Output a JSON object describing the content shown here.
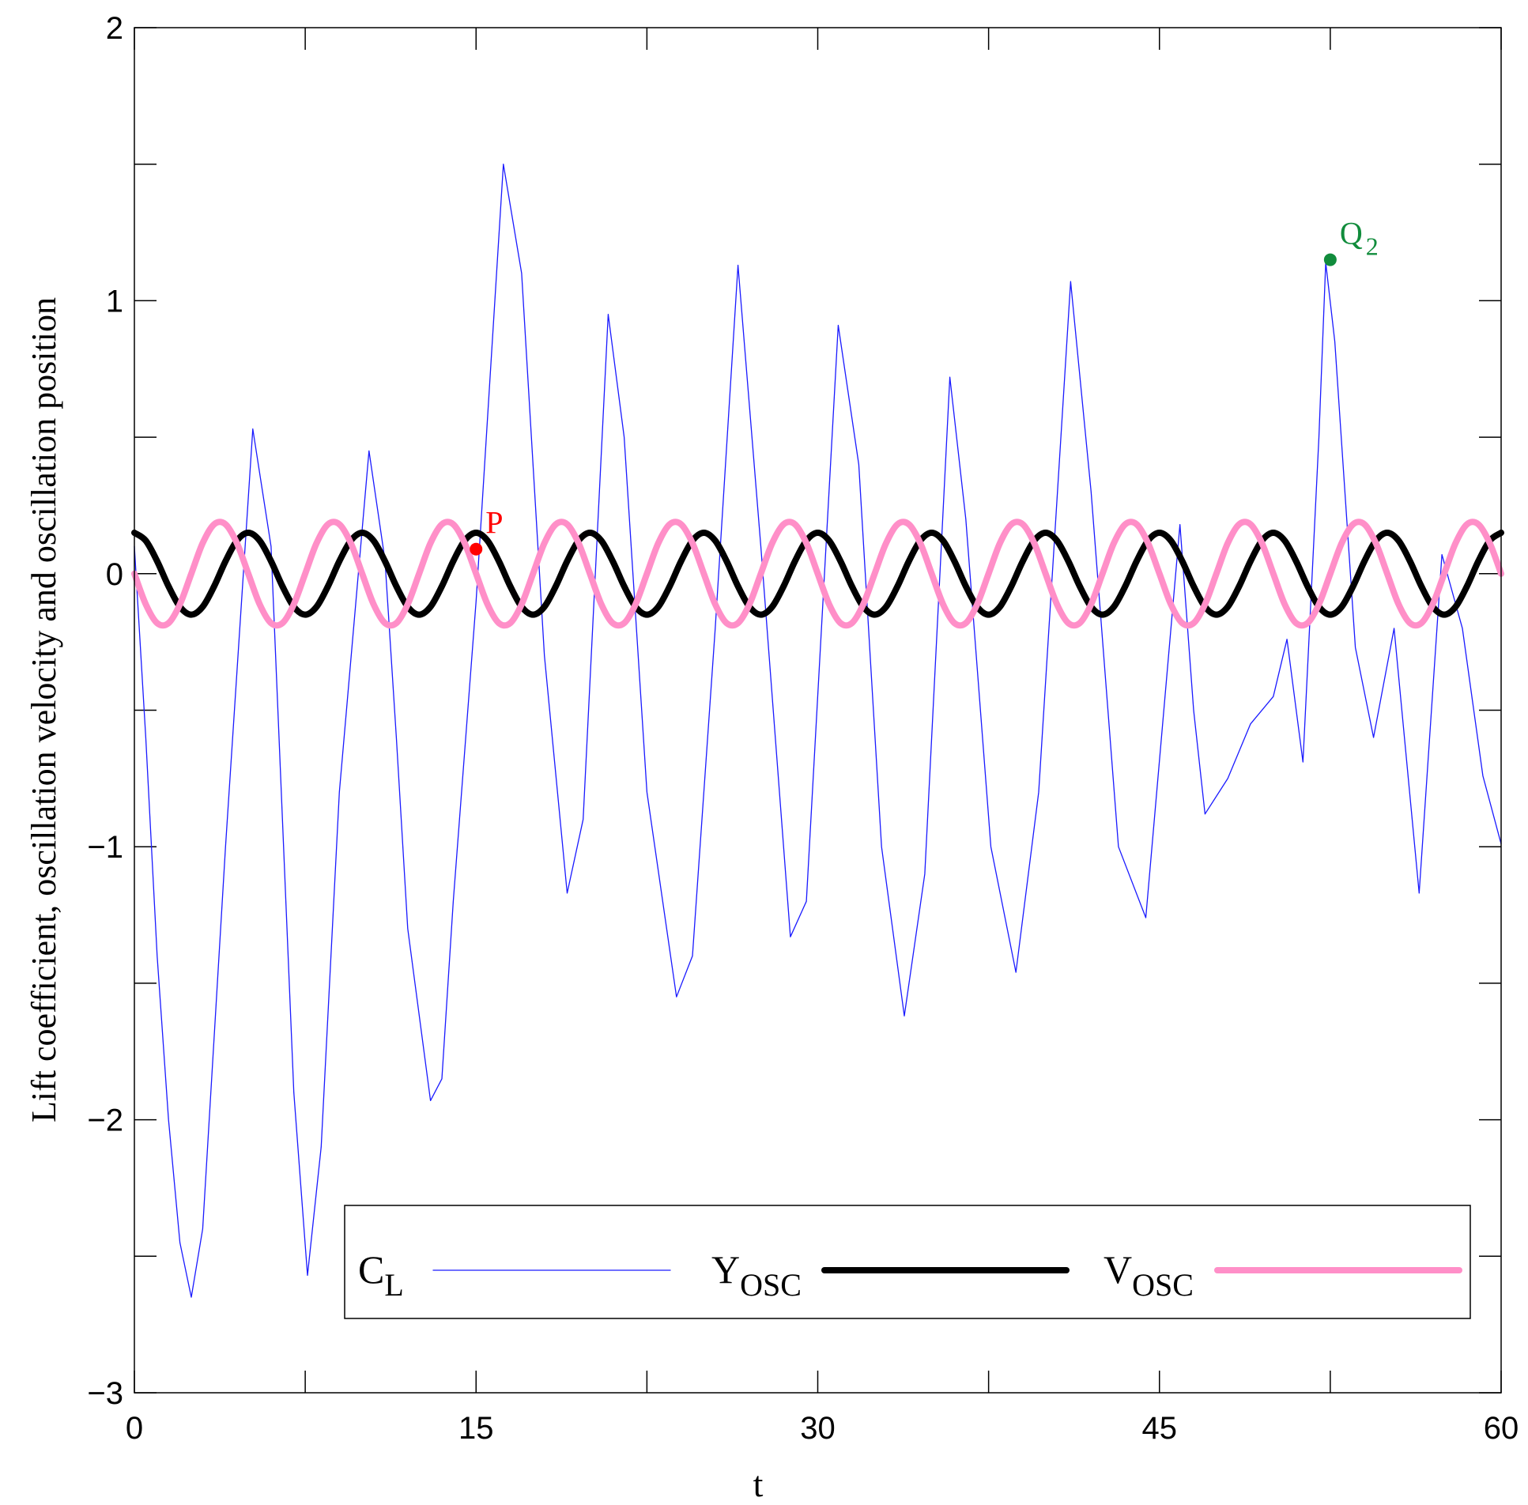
{
  "chart_data": {
    "type": "line",
    "xlabel": "t",
    "ylabel": "Lift coefficient, oscillation velocity and oscillation position",
    "xlim": [
      0,
      60
    ],
    "ylim": [
      -3,
      2
    ],
    "xticks": [
      0,
      15,
      30,
      45,
      60
    ],
    "xminor": [
      7.5,
      22.5,
      37.5,
      52.5
    ],
    "yticks": [
      {
        "value": -3,
        "label": "−3"
      },
      {
        "value": -2,
        "label": "−2"
      },
      {
        "value": -1,
        "label": "−1"
      },
      0,
      1,
      2
    ],
    "yminor": [
      -2.5,
      -1.5,
      -0.5,
      0.5,
      1.5
    ],
    "series": [
      {
        "name": "C",
        "sub": "L",
        "color": "#1a1aff",
        "width": 1.3,
        "smooth": false,
        "x": [
          0,
          0.5,
          1,
          1.5,
          2,
          2.5,
          3,
          4,
          5.2,
          6,
          6.5,
          7,
          7.6,
          8.2,
          9,
          10.3,
          11,
          11.5,
          12,
          13,
          13.5,
          14,
          15,
          16.2,
          17,
          18,
          19,
          19.7,
          20.8,
          21.5,
          22.5,
          23.8,
          24.5,
          25.5,
          26.5,
          27.5,
          28.8,
          29.5,
          30.9,
          31.8,
          32.8,
          33.8,
          34.7,
          35.8,
          36.5,
          37.6,
          38.7,
          39.7,
          41.1,
          42,
          43.2,
          44.4,
          45.9,
          46.5,
          47,
          48,
          49,
          50,
          50.6,
          51.3,
          52,
          52.3,
          52.7,
          53.6,
          54.4,
          55.3,
          56.4,
          57.4,
          58.3,
          59.2,
          60
        ],
        "values": [
          0.1,
          -0.6,
          -1.4,
          -2.0,
          -2.45,
          -2.65,
          -2.4,
          -1.0,
          0.53,
          0.1,
          -0.9,
          -1.9,
          -2.57,
          -2.1,
          -0.8,
          0.45,
          0.05,
          -0.6,
          -1.3,
          -1.93,
          -1.85,
          -1.2,
          -0.1,
          1.5,
          1.1,
          -0.3,
          -1.17,
          -0.9,
          0.95,
          0.5,
          -0.8,
          -1.55,
          -1.4,
          -0.2,
          1.13,
          0.1,
          -1.33,
          -1.2,
          0.91,
          0.4,
          -1.0,
          -1.62,
          -1.1,
          0.72,
          0.2,
          -1.0,
          -1.46,
          -0.8,
          1.07,
          0.3,
          -1.0,
          -1.26,
          0.18,
          -0.5,
          -0.88,
          -0.75,
          -0.55,
          -0.45,
          -0.24,
          -0.69,
          0.5,
          1.14,
          0.85,
          -0.27,
          -0.6,
          -0.2,
          -1.17,
          0.07,
          -0.2,
          -0.74,
          -0.99
        ]
      },
      {
        "name": "Y",
        "sub": "OSC",
        "color": "#000000",
        "width": 8,
        "smooth": true,
        "x": [
          0,
          0.5,
          1,
          1.5,
          2,
          2.5,
          3,
          3.5,
          4,
          4.5,
          5,
          5.5,
          6,
          6.5,
          7,
          7.5,
          8,
          8.5,
          9,
          9.5,
          10,
          10.5,
          11,
          11.5,
          12,
          12.5,
          13,
          13.5,
          14,
          14.5,
          15,
          15.5,
          16,
          16.5,
          17,
          17.5,
          18,
          18.5,
          19,
          19.5,
          20,
          20.5,
          21,
          21.5,
          22,
          22.5,
          23,
          23.5,
          24,
          24.5,
          25,
          25.5,
          26,
          26.5,
          27,
          27.5,
          28,
          28.5,
          29,
          29.5,
          30,
          30.5,
          31,
          31.5,
          32,
          32.5,
          33,
          33.5,
          34,
          34.5,
          35,
          35.5,
          36,
          36.5,
          37,
          37.5,
          38,
          38.5,
          39,
          39.5,
          40,
          40.5,
          41,
          41.5,
          42,
          42.5,
          43,
          43.5,
          44,
          44.5,
          45,
          45.5,
          46,
          46.5,
          47,
          47.5,
          48,
          48.5,
          49,
          49.5,
          50,
          50.5,
          51,
          51.5,
          52,
          52.5,
          53,
          53.5,
          54,
          54.5,
          55,
          55.5,
          56,
          56.5,
          57,
          57.5,
          58,
          58.5,
          59,
          59.5,
          60
        ],
        "values": [
          0.15,
          0.121,
          0.046,
          -0.046,
          -0.121,
          -0.15,
          -0.121,
          -0.046,
          0.046,
          0.121,
          0.15,
          0.121,
          0.046,
          -0.046,
          -0.121,
          -0.15,
          -0.121,
          -0.046,
          0.046,
          0.121,
          0.15,
          0.121,
          0.046,
          -0.046,
          -0.121,
          -0.15,
          -0.121,
          -0.046,
          0.046,
          0.121,
          0.15,
          0.121,
          0.046,
          -0.046,
          -0.121,
          -0.15,
          -0.121,
          -0.046,
          0.046,
          0.121,
          0.15,
          0.121,
          0.046,
          -0.046,
          -0.121,
          -0.15,
          -0.121,
          -0.046,
          0.046,
          0.121,
          0.15,
          0.121,
          0.046,
          -0.046,
          -0.121,
          -0.15,
          -0.121,
          -0.046,
          0.046,
          0.121,
          0.15,
          0.121,
          0.046,
          -0.046,
          -0.121,
          -0.15,
          -0.121,
          -0.046,
          0.046,
          0.121,
          0.15,
          0.121,
          0.046,
          -0.046,
          -0.121,
          -0.15,
          -0.121,
          -0.046,
          0.046,
          0.121,
          0.15,
          0.121,
          0.046,
          -0.046,
          -0.121,
          -0.15,
          -0.121,
          -0.046,
          0.046,
          0.121,
          0.15,
          0.121,
          0.046,
          -0.046,
          -0.121,
          -0.15,
          -0.121,
          -0.046,
          0.046,
          0.121,
          0.15,
          0.121,
          0.046,
          -0.046,
          -0.121,
          -0.15,
          -0.121,
          -0.046,
          0.046,
          0.121,
          0.15,
          0.121,
          0.046,
          -0.046,
          -0.121,
          -0.15,
          -0.121,
          -0.046,
          0.046,
          0.121,
          0.15
        ]
      },
      {
        "name": "V",
        "sub": "OSC",
        "color": "#ff8fc8",
        "width": 8,
        "smooth": true,
        "x": [
          0,
          0.5,
          1,
          1.5,
          2,
          2.5,
          3,
          3.5,
          4,
          4.5,
          5,
          5.5,
          6,
          6.5,
          7,
          7.5,
          8,
          8.5,
          9,
          9.5,
          10,
          10.5,
          11,
          11.5,
          12,
          12.5,
          13,
          13.5,
          14,
          14.5,
          15,
          15.5,
          16,
          16.5,
          17,
          17.5,
          18,
          18.5,
          19,
          19.5,
          20,
          20.5,
          21,
          21.5,
          22,
          22.5,
          23,
          23.5,
          24,
          24.5,
          25,
          25.5,
          26,
          26.5,
          27,
          27.5,
          28,
          28.5,
          29,
          29.5,
          30,
          30.5,
          31,
          31.5,
          32,
          32.5,
          33,
          33.5,
          34,
          34.5,
          35,
          35.5,
          36,
          36.5,
          37,
          37.5,
          38,
          38.5,
          39,
          39.5,
          40,
          40.5,
          41,
          41.5,
          42,
          42.5,
          43,
          43.5,
          44,
          44.5,
          45,
          45.5,
          46,
          46.5,
          47,
          47.5,
          48,
          48.5,
          49,
          49.5,
          50,
          50.5,
          51,
          51.5,
          52,
          52.5,
          53,
          53.5,
          54,
          54.5,
          55,
          55.5,
          56,
          56.5,
          57,
          57.5,
          58,
          58.5,
          59,
          59.5,
          60
        ],
        "values": [
          0,
          -0.112,
          -0.181,
          -0.181,
          -0.112,
          0,
          0.112,
          0.181,
          0.181,
          0.112,
          0,
          -0.112,
          -0.181,
          -0.181,
          -0.112,
          0,
          0.112,
          0.181,
          0.181,
          0.112,
          0,
          -0.112,
          -0.181,
          -0.181,
          -0.112,
          0,
          0.112,
          0.181,
          0.181,
          0.112,
          0,
          -0.112,
          -0.181,
          -0.181,
          -0.112,
          0,
          0.112,
          0.181,
          0.181,
          0.112,
          0,
          -0.112,
          -0.181,
          -0.181,
          -0.112,
          0,
          0.112,
          0.181,
          0.181,
          0.112,
          0,
          -0.112,
          -0.181,
          -0.181,
          -0.112,
          0,
          0.112,
          0.181,
          0.181,
          0.112,
          0,
          -0.112,
          -0.181,
          -0.181,
          -0.112,
          0,
          0.112,
          0.181,
          0.181,
          0.112,
          0,
          -0.112,
          -0.181,
          -0.181,
          -0.112,
          0,
          0.112,
          0.181,
          0.181,
          0.112,
          0,
          -0.112,
          -0.181,
          -0.181,
          -0.112,
          0,
          0.112,
          0.181,
          0.181,
          0.112,
          0,
          -0.112,
          -0.181,
          -0.181,
          -0.112,
          0,
          0.112,
          0.181,
          0.181,
          0.112,
          0,
          -0.112,
          -0.181,
          -0.181,
          -0.112,
          0,
          0.112,
          0.181,
          0.181,
          0.112,
          0,
          -0.112,
          -0.181,
          -0.181,
          -0.112,
          0,
          0.112,
          0.181,
          0.181,
          0.112,
          0
        ]
      }
    ],
    "annotations": [
      {
        "label": "P",
        "x": 15,
        "y": 0.09,
        "color": "#ff0000"
      },
      {
        "label": "Q",
        "sub": "2",
        "x": 52.5,
        "y": 1.15,
        "color": "#118c3c"
      }
    ]
  }
}
